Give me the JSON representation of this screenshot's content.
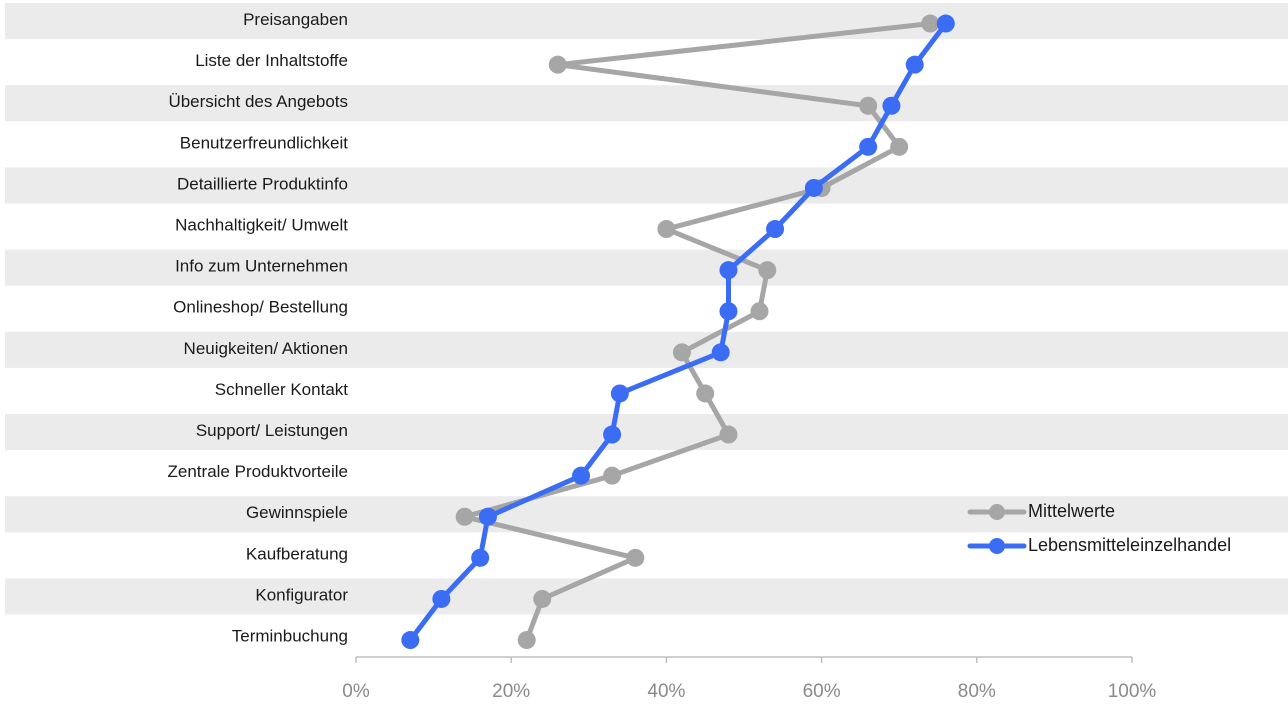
{
  "chart_data": {
    "type": "line",
    "orientation": "horizontal",
    "categories": [
      "Preisangaben",
      "Liste der Inhaltstoffe",
      "Übersicht des Angebots",
      "Benutzerfreundlichkeit",
      "Detaillierte Produktinfo",
      "Nachhaltigkeit/ Umwelt",
      "Info zum Unternehmen",
      "Onlineshop/ Bestellung",
      "Neuigkeiten/ Aktionen",
      "Schneller Kontakt",
      "Support/ Leistungen",
      "Zentrale Produktvorteile",
      "Gewinnspiele",
      "Kaufberatung",
      "Konfigurator",
      "Terminbuchung"
    ],
    "series": [
      {
        "name": "Mittelwerte",
        "color": "#a6a6a6",
        "values": [
          0.74,
          0.26,
          0.66,
          0.7,
          0.6,
          0.4,
          0.53,
          0.52,
          0.42,
          0.45,
          0.48,
          0.33,
          0.14,
          0.36,
          0.24,
          0.22
        ]
      },
      {
        "name": "Lebensmitteleinzelhandel",
        "color": "#3a6cf4",
        "values": [
          0.76,
          0.72,
          0.69,
          0.66,
          0.59,
          0.54,
          0.48,
          0.48,
          0.47,
          0.34,
          0.33,
          0.29,
          0.17,
          0.16,
          0.11,
          0.07
        ]
      }
    ],
    "xlim": [
      0,
      1
    ],
    "xticks": [
      "0%",
      "20%",
      "40%",
      "60%",
      "80%",
      "100%"
    ],
    "xtick_values": [
      0,
      0.2,
      0.4,
      0.6,
      0.8,
      1.0
    ],
    "row_band_color": "#ebebeb",
    "legend_position": "right"
  }
}
